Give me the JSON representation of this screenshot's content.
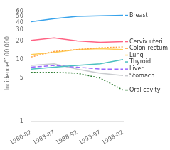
{
  "chart_data": {
    "type": "line",
    "categories": [
      "1980-82",
      "1983-87",
      "1988-92",
      "1993-97",
      "1998-02"
    ],
    "series": [
      {
        "name": "Breast",
        "values": [
          41,
          46,
          50,
          51,
          52
        ],
        "line_style": "solid"
      },
      {
        "name": "Cervix uteri",
        "values": [
          20.5,
          22.5,
          20,
          19,
          19.5
        ],
        "line_style": "solid"
      },
      {
        "name": "Colon-rectum",
        "values": [
          11,
          13.5,
          14.5,
          15.5,
          16
        ],
        "line_style": "dotted"
      },
      {
        "name": "Lung",
        "values": [
          12,
          13,
          14.5,
          15,
          14.5
        ],
        "line_style": "solid"
      },
      {
        "name": "Thyroid",
        "values": [
          7.0,
          7.5,
          8.0,
          8.5,
          10.0
        ],
        "line_style": "solid"
      },
      {
        "name": "Liver",
        "values": [
          7.5,
          8.0,
          7.5,
          7.0,
          7.0
        ],
        "line_style": "dashed"
      },
      {
        "name": "Stomach",
        "values": [
          8.0,
          8.5,
          7.0,
          6.0,
          5.5
        ],
        "line_style": "solid"
      },
      {
        "name": "Oral cavity",
        "values": [
          6.2,
          6.2,
          6.0,
          5.0,
          3.2
        ],
        "line_style": "dotted"
      }
    ],
    "ylabel": "Incidence/'100 000",
    "ylim": [
      1,
      75
    ],
    "yticks": [
      1,
      5,
      10,
      20,
      30,
      40,
      50,
      60
    ],
    "log": "y",
    "grid": false
  }
}
